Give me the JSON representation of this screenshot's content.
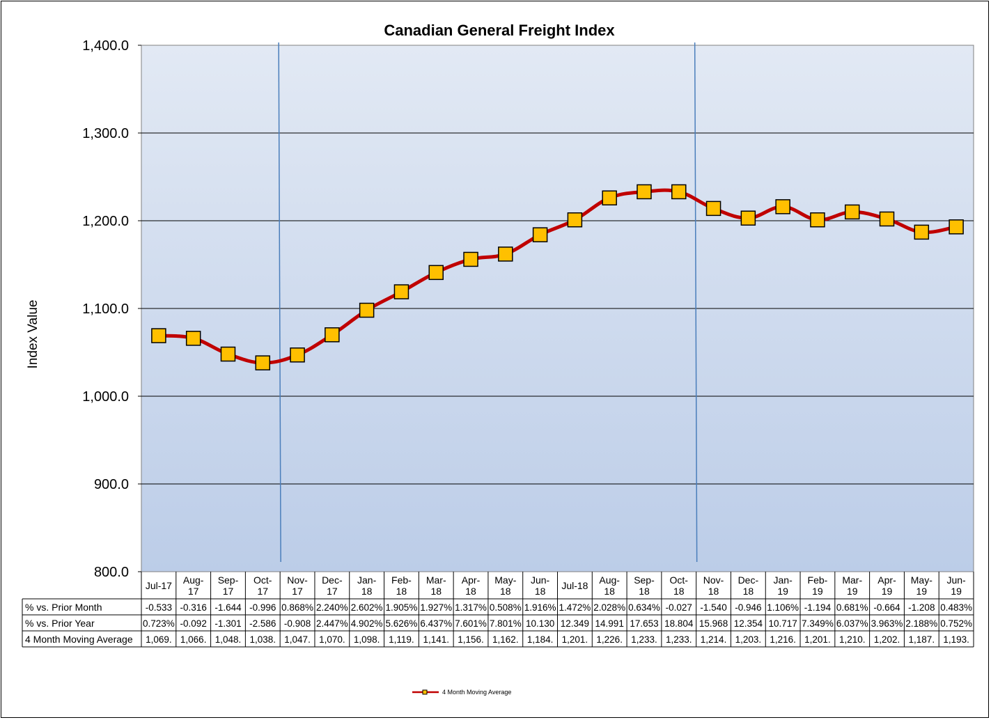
{
  "chart_data": {
    "type": "line",
    "title": "Canadian General Freight Index",
    "ylabel": "Index Value",
    "ylim": [
      800,
      1400
    ],
    "y_ticks": [
      "1,400.0",
      "1,300.0",
      "1,200.0",
      "1,100.0",
      "1,000.0",
      "900.0",
      "800.0"
    ],
    "grid": true,
    "legend_position": "bottom",
    "categories": [
      [
        "Jul-17"
      ],
      [
        "Aug-",
        "17"
      ],
      [
        "Sep-",
        "17"
      ],
      [
        "Oct-",
        "17"
      ],
      [
        "Nov-",
        "17"
      ],
      [
        "Dec-",
        "17"
      ],
      [
        "Jan-",
        "18"
      ],
      [
        "Feb-",
        "18"
      ],
      [
        "Mar-",
        "18"
      ],
      [
        "Apr-",
        "18"
      ],
      [
        "May-",
        "18"
      ],
      [
        "Jun-",
        "18"
      ],
      [
        "Jul-18"
      ],
      [
        "Aug-",
        "18"
      ],
      [
        "Sep-",
        "18"
      ],
      [
        "Oct-",
        "18"
      ],
      [
        "Nov-",
        "18"
      ],
      [
        "Dec-",
        "18"
      ],
      [
        "Jan-",
        "19"
      ],
      [
        "Feb-",
        "19"
      ],
      [
        "Mar-",
        "19"
      ],
      [
        "Apr-",
        "19"
      ],
      [
        "May-",
        "19"
      ],
      [
        "Jun-",
        "19"
      ]
    ],
    "series": [
      {
        "name": "4 Month Moving Average",
        "color": "#c00000",
        "marker_color": "#ffc000",
        "values": [
          1069,
          1066,
          1048,
          1038,
          1047,
          1070,
          1098,
          1119,
          1141,
          1156,
          1162,
          1184,
          1201,
          1226,
          1233,
          1233,
          1214,
          1203,
          1216,
          1201,
          1210,
          1202,
          1187,
          1193
        ]
      }
    ],
    "vertical_markers": [
      "Nov-17",
      "Nov-18"
    ],
    "table": {
      "rows": [
        {
          "label": "% vs. Prior Month",
          "cells": [
            "-0.533",
            "-0.316",
            "-1.644",
            "-0.996",
            "0.868%",
            "2.240%",
            "2.602%",
            "1.905%",
            "1.927%",
            "1.317%",
            "0.508%",
            "1.916%",
            "1.472%",
            "2.028%",
            "0.634%",
            "-0.027",
            "-1.540",
            "-0.946",
            "1.106%",
            "-1.194",
            "0.681%",
            "-0.664",
            "-1.208",
            "0.483%"
          ]
        },
        {
          "label": "% vs. Prior Year",
          "cells": [
            "0.723%",
            "-0.092",
            "-1.301",
            "-2.586",
            "-0.908",
            "2.447%",
            "4.902%",
            "5.626%",
            "6.437%",
            "7.601%",
            "7.801%",
            "10.130",
            "12.349",
            "14.991",
            "17.653",
            "18.804",
            "15.968",
            "12.354",
            "10.717",
            "7.349%",
            "6.037%",
            "3.963%",
            "2.188%",
            "0.752%"
          ]
        },
        {
          "label": "4 Month Moving Average",
          "cells": [
            "1,069.",
            "1,066.",
            "1,048.",
            "1,038.",
            "1,047.",
            "1,070.",
            "1,098.",
            "1,119.",
            "1,141.",
            "1,156.",
            "1,162.",
            "1,184.",
            "1,201.",
            "1,226.",
            "1,233.",
            "1,233.",
            "1,214.",
            "1,203.",
            "1,216.",
            "1,201.",
            "1,210.",
            "1,202.",
            "1,187.",
            "1,193."
          ]
        }
      ]
    }
  },
  "colors": {
    "plot_top": "#e2e9f4",
    "plot_bottom": "#bccde8",
    "line": "#c00000",
    "marker": "#ffc000",
    "marker_border": "#000000",
    "vline": "#4a7ebb"
  }
}
